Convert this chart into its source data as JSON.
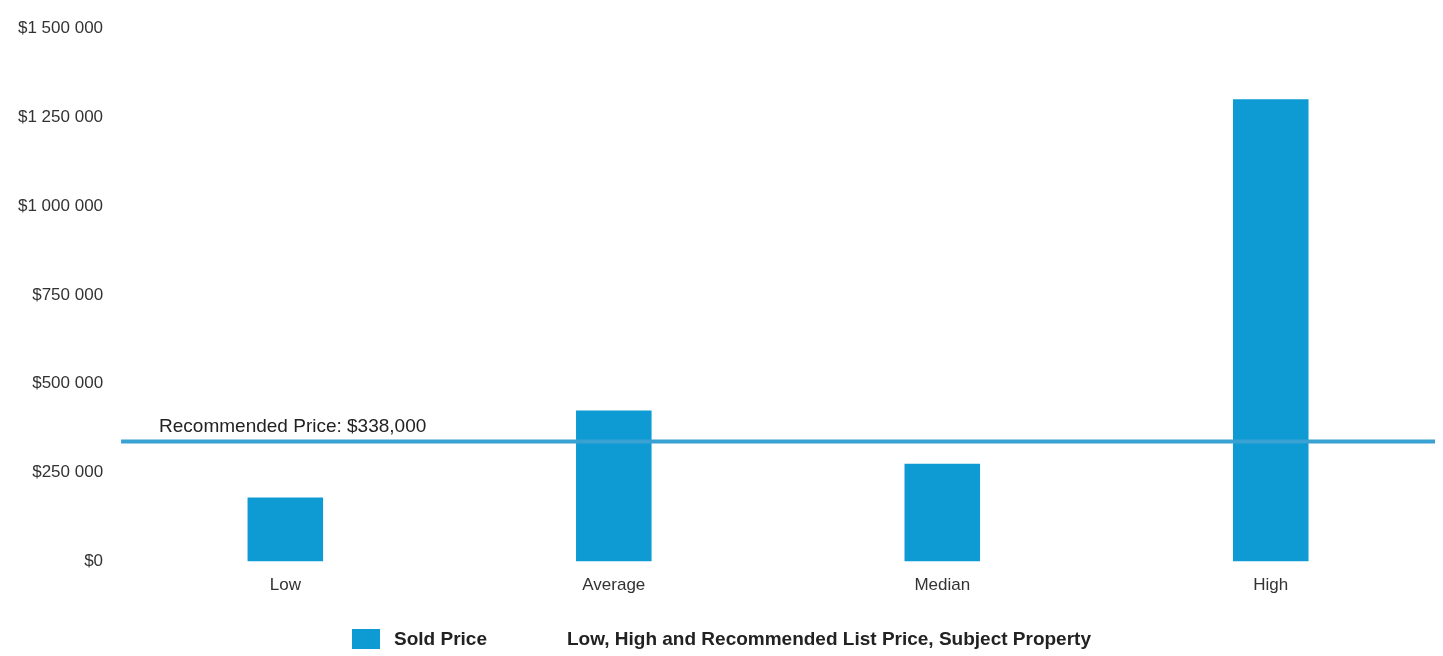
{
  "chart_data": {
    "type": "bar",
    "categories": [
      "Low",
      "Average",
      "Median",
      "High"
    ],
    "series": [
      {
        "name": "Sold Price",
        "color": "#0e9bd3",
        "values": [
          180000,
          425000,
          275000,
          1300000
        ]
      }
    ],
    "ylim": [
      0,
      1500000
    ],
    "yticks": [
      {
        "value": 0,
        "label": "$0"
      },
      {
        "value": 250000,
        "label": "$250 000"
      },
      {
        "value": 500000,
        "label": "$500 000"
      },
      {
        "value": 750000,
        "label": "$750 000"
      },
      {
        "value": 1000000,
        "label": "$1 000 000"
      },
      {
        "value": 1250000,
        "label": "$1 250 000"
      },
      {
        "value": 1500000,
        "label": "$1 500 000"
      }
    ],
    "ref_lines": [
      {
        "axis": "y",
        "value": 338000,
        "label": "Recommended Price: $338,000",
        "color": "#3aa2d2"
      }
    ],
    "annotations": [
      "Low, High and Recommended List Price, Subject Property"
    ],
    "legend": "bottom",
    "grid": false
  }
}
